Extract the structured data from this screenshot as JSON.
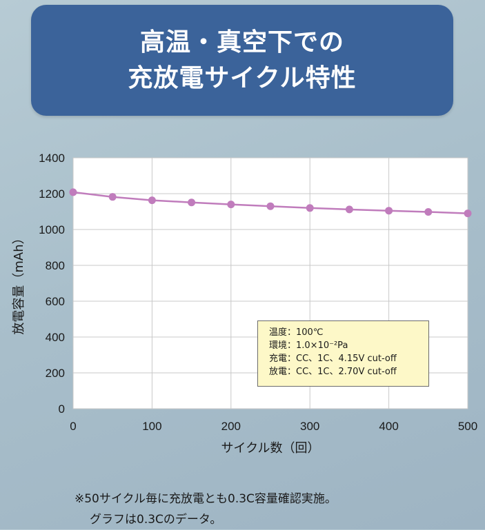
{
  "title": {
    "line1": "高温・真空下での",
    "line2": "充放電サイクル特性"
  },
  "chart_data": {
    "type": "line",
    "title": "高温・真空下での充放電サイクル特性",
    "xlabel": "サイクル数（回）",
    "ylabel": "放電容量（mAh）",
    "xlim": [
      0,
      500
    ],
    "ylim": [
      0,
      1400
    ],
    "x_ticks": [
      "0",
      "100",
      "200",
      "300",
      "400",
      "500"
    ],
    "y_ticks": [
      "0",
      "200",
      "400",
      "600",
      "800",
      "1000",
      "1200",
      "1400"
    ],
    "grid": true,
    "color": "#c07cbc",
    "x": [
      0,
      50,
      100,
      150,
      200,
      250,
      300,
      350,
      400,
      450,
      500
    ],
    "y": [
      1208,
      1182,
      1163,
      1151,
      1140,
      1130,
      1120,
      1112,
      1105,
      1098,
      1090
    ]
  },
  "legend": {
    "lines": [
      "温度：100℃",
      "環境：1.0×10⁻²Pa",
      "充電：CC、1C、4.15V cut-off",
      "放電：CC、1C、2.70V cut-off"
    ]
  },
  "note": {
    "line1": "※50サイクル毎に充放電とも0.3C容量確認実施。",
    "line2": "グラフは0.3Cのデータ。"
  }
}
